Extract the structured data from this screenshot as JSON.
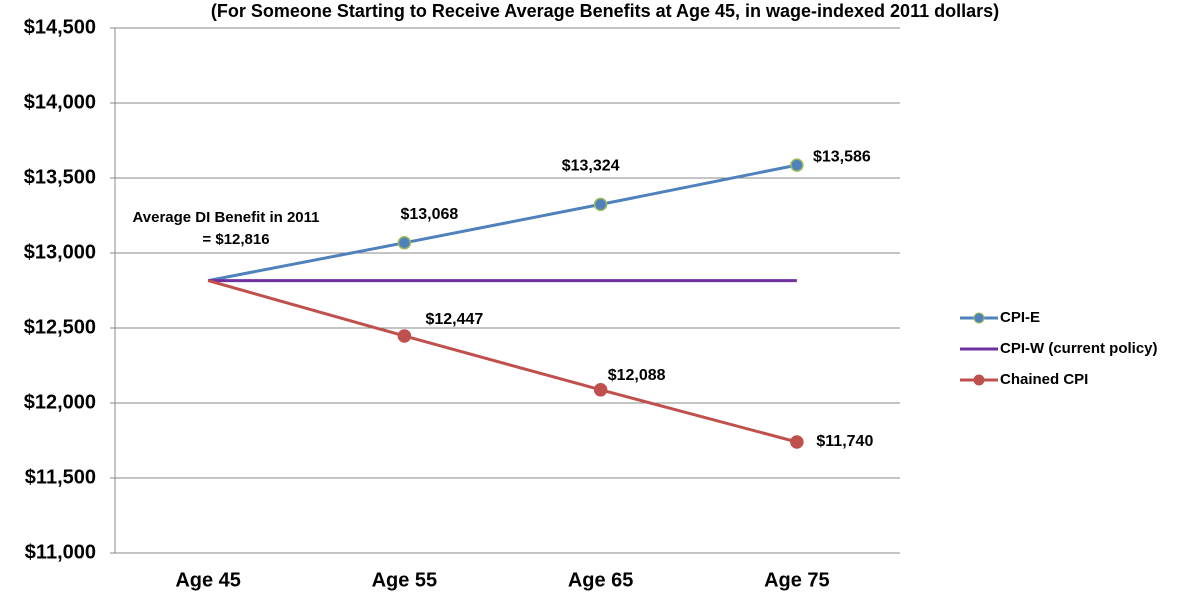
{
  "chart_data": {
    "type": "line",
    "subtitle": "(For Someone Starting to Receive Average Benefits at Age 45, in wage-indexed 2011 dollars)",
    "annotations": [
      "Average DI Benefit in 2011",
      "= $12,816"
    ],
    "categories": [
      "Age 45",
      "Age 55",
      "Age 65",
      "Age 75"
    ],
    "series": [
      {
        "name": "CPI-E",
        "color": "#4f81bd",
        "marker_edge": "#9bbb59",
        "values": [
          12816,
          13068,
          13324,
          13586
        ],
        "value_labels": [
          null,
          "$13,068",
          "$13,324",
          "$13,586"
        ]
      },
      {
        "name": "CPI-W (current policy)",
        "color": "#7030a0",
        "values": [
          12816,
          12816,
          12816,
          12816
        ]
      },
      {
        "name": "Chained CPI",
        "color": "#c0504d",
        "values": [
          12816,
          12447,
          12088,
          11740
        ],
        "value_labels": [
          null,
          "$12,447",
          "$12,088",
          "$11,740"
        ]
      }
    ],
    "ylim": [
      11000,
      14500
    ],
    "yticks": [
      {
        "value": 11000,
        "label": "$11,000"
      },
      {
        "value": 11500,
        "label": "$11,500"
      },
      {
        "value": 12000,
        "label": "$12,000"
      },
      {
        "value": 12500,
        "label": "$12,500"
      },
      {
        "value": 13000,
        "label": "$13,000"
      },
      {
        "value": 13500,
        "label": "$13,500"
      },
      {
        "value": 14000,
        "label": "$14,000"
      },
      {
        "value": 14500,
        "label": "$14,500"
      }
    ],
    "grid": true,
    "legend": "right"
  }
}
